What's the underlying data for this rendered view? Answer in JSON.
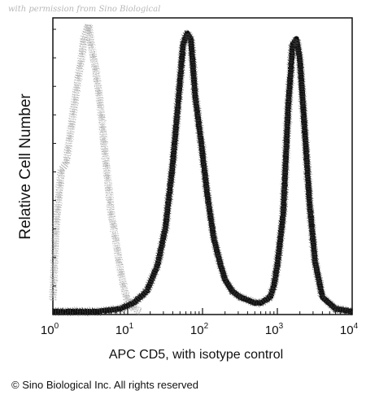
{
  "watermark": "with permission from Sino Biological",
  "copyright": "© Sino Biological Inc. All rights reserved",
  "chart_data": {
    "type": "area",
    "title": "",
    "xlabel": "APC CD5, with isotype control",
    "ylabel": "Relative Cell Number",
    "xscale": "log",
    "xlim": [
      1,
      10000
    ],
    "ylim": [
      0,
      1
    ],
    "grid": false,
    "x_ticks": [
      {
        "base": "10",
        "exp": "0",
        "value": 1
      },
      {
        "base": "10",
        "exp": "1",
        "value": 10
      },
      {
        "base": "10",
        "exp": "2",
        "value": 100
      },
      {
        "base": "10",
        "exp": "3",
        "value": 1000
      },
      {
        "base": "10",
        "exp": "4",
        "value": 10000
      }
    ],
    "series": [
      {
        "style": "dotted-gray",
        "x": [
          1.0,
          1.1,
          1.3,
          1.5,
          1.7,
          2.0,
          2.3,
          2.6,
          3.0,
          3.3,
          3.7,
          4.2,
          5.0,
          6.0,
          7.0,
          8.0,
          8.8,
          9.5,
          10.5,
          12.0,
          15.0
        ],
        "y": [
          0.05,
          0.3,
          0.5,
          0.52,
          0.62,
          0.75,
          0.85,
          0.95,
          1.0,
          0.92,
          0.85,
          0.75,
          0.55,
          0.35,
          0.25,
          0.15,
          0.1,
          0.06,
          0.04,
          0.02,
          0.01
        ]
      },
      {
        "style": "solid-black",
        "x": [
          1.0,
          2.0,
          4.0,
          8.0,
          12.0,
          18.0,
          25.0,
          32.0,
          40.0,
          48.0,
          55.0,
          62.0,
          70.0,
          80.0,
          95.0,
          115.0,
          140.0,
          170.0,
          200.0,
          250.0,
          320.0,
          400.0,
          500.0,
          600.0,
          700.0,
          800.0,
          900.0,
          1000.0,
          1200.0,
          1400.0,
          1600.0,
          1800.0,
          2000.0,
          2300.0,
          2700.0,
          3200.0,
          4000.0,
          6000.0,
          10000.0
        ],
        "y": [
          0.01,
          0.01,
          0.01,
          0.02,
          0.04,
          0.08,
          0.17,
          0.3,
          0.52,
          0.75,
          0.93,
          0.97,
          0.95,
          0.75,
          0.6,
          0.42,
          0.27,
          0.18,
          0.12,
          0.08,
          0.06,
          0.05,
          0.04,
          0.04,
          0.05,
          0.06,
          0.1,
          0.17,
          0.35,
          0.72,
          0.93,
          0.95,
          0.88,
          0.65,
          0.38,
          0.18,
          0.06,
          0.02,
          0.01
        ]
      }
    ]
  }
}
